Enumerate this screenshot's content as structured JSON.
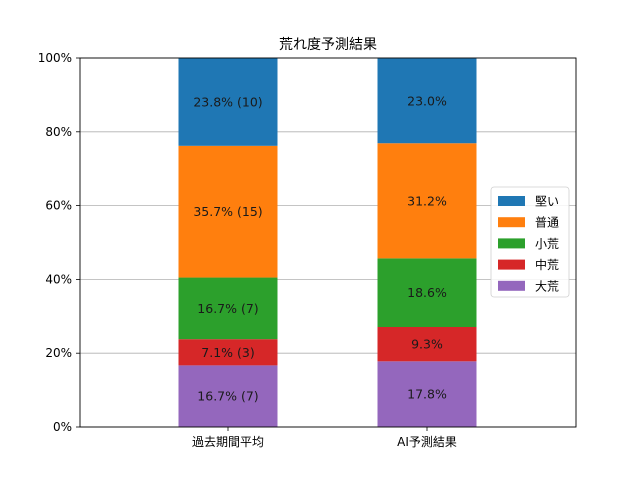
{
  "chart_data": {
    "type": "bar",
    "stacked": true,
    "title": "荒れ度予測結果",
    "xlabel": "",
    "ylabel": "",
    "categories": [
      "過去期間平均",
      "AI予測結果"
    ],
    "ylim": [
      0,
      100
    ],
    "yticks": [
      "0%",
      "20%",
      "40%",
      "60%",
      "80%",
      "100%"
    ],
    "grid": "horizontal",
    "legend_position": "right",
    "series": [
      {
        "name": "大荒",
        "color": "#9467bd",
        "values": [
          16.7,
          17.8
        ],
        "labels": [
          "16.7% (7)",
          "17.8%"
        ]
      },
      {
        "name": "中荒",
        "color": "#d62728",
        "values": [
          7.1,
          9.3
        ],
        "labels": [
          "7.1% (3)",
          "9.3%"
        ]
      },
      {
        "name": "小荒",
        "color": "#2ca02c",
        "values": [
          16.7,
          18.6
        ],
        "labels": [
          "16.7% (7)",
          "18.6%"
        ]
      },
      {
        "name": "普通",
        "color": "#ff7f0e",
        "values": [
          35.7,
          31.2
        ],
        "labels": [
          "35.7% (15)",
          "31.2%"
        ]
      },
      {
        "name": "堅い",
        "color": "#1f77b4",
        "values": [
          23.8,
          23.0
        ],
        "labels": [
          "23.8% (10)",
          "23.0%"
        ]
      }
    ],
    "legend_order": [
      "堅い",
      "普通",
      "小荒",
      "中荒",
      "大荒"
    ]
  }
}
